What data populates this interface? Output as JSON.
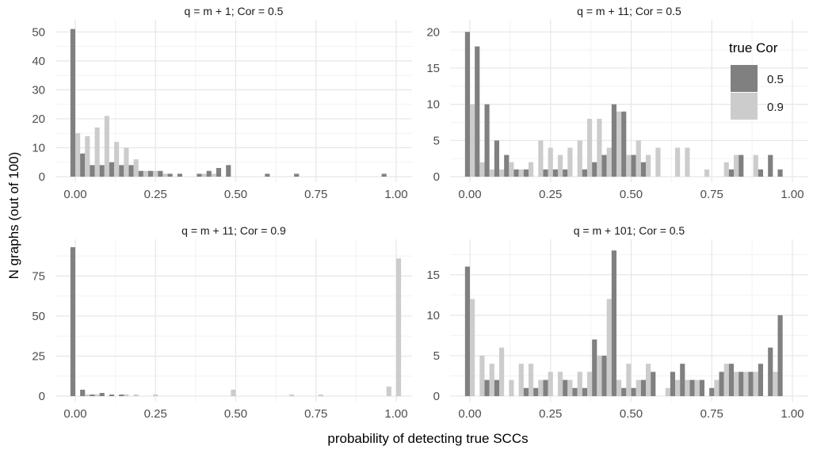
{
  "figure": {
    "x_axis_label": "probability of detecting true SCCs",
    "y_axis_label": "N graphs (out of 100)"
  },
  "legend": {
    "title": "true Cor",
    "items": [
      {
        "label": "0.5",
        "color": "#808080"
      },
      {
        "label": "0.9",
        "color": "#cccccc"
      }
    ]
  },
  "chart_data": [
    {
      "type": "bar",
      "title": "q = m + 1; Cor = 0.5",
      "xlim": [
        0,
        1
      ],
      "ylim": [
        0,
        52
      ],
      "x_ticks": [
        "0.00",
        "0.25",
        "0.50",
        "0.75",
        "1.00"
      ],
      "y_ticks": [
        "0",
        "10",
        "20",
        "30",
        "40",
        "50"
      ],
      "bin_width": 0.0303,
      "x": [
        0,
        0.0303,
        0.0606,
        0.0909,
        0.1212,
        0.1515,
        0.1818,
        0.2121,
        0.2424,
        0.2727,
        0.303,
        0.3333,
        0.3636,
        0.3939,
        0.4242,
        0.4545,
        0.4848,
        0.5152,
        0.5455,
        0.5758,
        0.6061,
        0.6364,
        0.6667,
        0.697,
        0.7273,
        0.7576,
        0.7879,
        0.8182,
        0.8485,
        0.8788,
        0.9091,
        0.9394,
        0.9697,
        1.0
      ],
      "series": [
        {
          "name": "0.5",
          "values": [
            51,
            8,
            4,
            4,
            5,
            4,
            4,
            2,
            2,
            2,
            1,
            1,
            0,
            1,
            2,
            3,
            4,
            0,
            0,
            0,
            1,
            0,
            0,
            1,
            0,
            0,
            0,
            0,
            0,
            0,
            0,
            0,
            1,
            0
          ]
        },
        {
          "name": "0.9",
          "values": [
            15,
            14,
            17,
            21,
            12,
            10,
            6,
            2,
            2,
            1,
            0,
            0,
            0,
            1,
            1,
            0,
            0,
            0,
            0,
            0,
            0,
            0,
            0,
            0,
            0,
            0,
            0,
            0,
            0,
            0,
            0,
            0,
            0,
            0
          ]
        }
      ]
    },
    {
      "type": "bar",
      "title": "q = m + 11; Cor = 0.5",
      "xlim": [
        0,
        1
      ],
      "ylim": [
        0,
        20.8
      ],
      "x_ticks": [
        "0.00",
        "0.25",
        "0.50",
        "0.75",
        "1.00"
      ],
      "y_ticks": [
        "0",
        "5",
        "10",
        "15",
        "20"
      ],
      "bin_width": 0.0303,
      "x": [
        0,
        0.0303,
        0.0606,
        0.0909,
        0.1212,
        0.1515,
        0.1818,
        0.2121,
        0.2424,
        0.2727,
        0.303,
        0.3333,
        0.3636,
        0.3939,
        0.4242,
        0.4545,
        0.4848,
        0.5152,
        0.5455,
        0.5758,
        0.6061,
        0.6364,
        0.6667,
        0.697,
        0.7273,
        0.7576,
        0.7879,
        0.8182,
        0.8485,
        0.8788,
        0.9091,
        0.9394,
        0.9697,
        1.0
      ],
      "series": [
        {
          "name": "0.5",
          "values": [
            20,
            18,
            10,
            5,
            3,
            1,
            1,
            0,
            1,
            1,
            1,
            0,
            1,
            2,
            3,
            10,
            9,
            3,
            2,
            0,
            0,
            0,
            0,
            0,
            0,
            0,
            0,
            1,
            3,
            0,
            1,
            3,
            1,
            0
          ]
        },
        {
          "name": "0.9",
          "values": [
            10,
            2,
            1,
            1,
            2,
            1,
            2,
            5,
            4,
            3,
            4,
            5,
            8,
            8,
            4,
            9,
            3,
            5,
            3,
            4,
            0,
            4,
            4,
            0,
            1,
            0,
            2,
            3,
            0,
            3,
            0,
            0,
            0,
            0
          ]
        }
      ]
    },
    {
      "type": "bar",
      "title": "q = m + 11; Cor = 0.9",
      "xlim": [
        0,
        1
      ],
      "ylim": [
        0,
        94
      ],
      "x_ticks": [
        "0.00",
        "0.25",
        "0.50",
        "0.75",
        "1.00"
      ],
      "y_ticks": [
        "0",
        "25",
        "50",
        "75"
      ],
      "bin_width": 0.0303,
      "x": [
        0,
        0.0303,
        0.0606,
        0.0909,
        0.1212,
        0.1515,
        0.1818,
        0.2121,
        0.2424,
        0.2727,
        0.303,
        0.3333,
        0.3636,
        0.3939,
        0.4242,
        0.4545,
        0.4848,
        0.5152,
        0.5455,
        0.5758,
        0.6061,
        0.6364,
        0.6667,
        0.697,
        0.7273,
        0.7576,
        0.7879,
        0.8182,
        0.8485,
        0.8788,
        0.9091,
        0.9394,
        0.9697,
        1.0
      ],
      "series": [
        {
          "name": "0.5",
          "values": [
            93,
            4,
            1,
            2,
            1,
            1,
            0,
            0,
            0,
            0,
            0,
            0,
            0,
            0,
            0,
            0,
            0,
            0,
            0,
            0,
            0,
            0,
            0,
            0,
            0,
            0,
            0,
            0,
            0,
            0,
            0,
            0,
            0,
            0
          ]
        },
        {
          "name": "0.9",
          "values": [
            0,
            1,
            1,
            0,
            0,
            1,
            1,
            0,
            1,
            0,
            0,
            0,
            0,
            0,
            0,
            0,
            4,
            0,
            0,
            0,
            0,
            0,
            1,
            0,
            0,
            1,
            0,
            0,
            0,
            0,
            0,
            0,
            6,
            86
          ]
        }
      ]
    },
    {
      "type": "bar",
      "title": "q = m + 101; Cor = 0.5",
      "xlim": [
        0,
        1
      ],
      "ylim": [
        0,
        18.6
      ],
      "x_ticks": [
        "0.00",
        "0.25",
        "0.50",
        "0.75",
        "1.00"
      ],
      "y_ticks": [
        "0",
        "5",
        "10",
        "15"
      ],
      "bin_width": 0.0303,
      "x": [
        0,
        0.0303,
        0.0606,
        0.0909,
        0.1212,
        0.1515,
        0.1818,
        0.2121,
        0.2424,
        0.2727,
        0.303,
        0.3333,
        0.3636,
        0.3939,
        0.4242,
        0.4545,
        0.4848,
        0.5152,
        0.5455,
        0.5758,
        0.6061,
        0.6364,
        0.6667,
        0.697,
        0.7273,
        0.7576,
        0.7879,
        0.8182,
        0.8485,
        0.8788,
        0.9091,
        0.9394,
        0.9697,
        1.0
      ],
      "series": [
        {
          "name": "0.5",
          "values": [
            16,
            0,
            2,
            2,
            0,
            0,
            1,
            1,
            2,
            0,
            2,
            1,
            1,
            7,
            5,
            18,
            1,
            1,
            2,
            3,
            0,
            3,
            4,
            2,
            2,
            1,
            3,
            4,
            3,
            3,
            4,
            6,
            10,
            0
          ]
        },
        {
          "name": "0.9",
          "values": [
            12,
            5,
            4,
            6,
            2,
            4,
            4,
            2,
            3,
            3,
            2,
            3,
            3,
            5,
            12,
            2,
            4,
            2,
            4,
            0,
            1,
            2,
            2,
            2,
            0,
            2,
            4,
            3,
            3,
            3,
            0,
            3,
            0,
            0
          ]
        }
      ]
    }
  ]
}
